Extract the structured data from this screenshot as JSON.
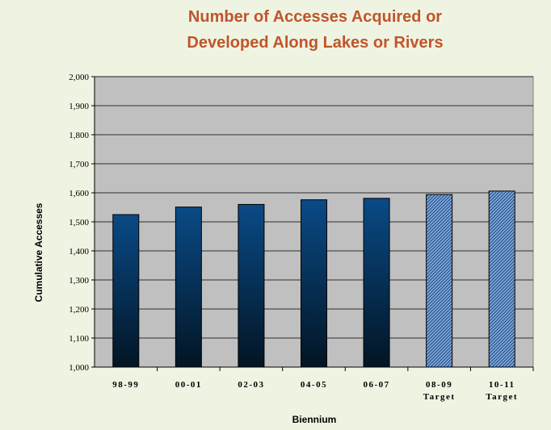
{
  "chart_data": {
    "type": "bar",
    "title_line1": "Number of Accesses Acquired or",
    "title_line2": "Developed Along Lakes or Rivers",
    "xlabel": "Biennium",
    "ylabel": "Cumulative Accesses",
    "ylim": [
      1000,
      2000
    ],
    "yticks": [
      "1,000",
      "1,100",
      "1,200",
      "1,300",
      "1,400",
      "1,500",
      "1,600",
      "1,700",
      "1,800",
      "1,900",
      "2,000"
    ],
    "ytick_values": [
      1000,
      1100,
      1200,
      1300,
      1400,
      1500,
      1600,
      1700,
      1800,
      1900,
      2000
    ],
    "grid": true,
    "legend": "none",
    "categories": [
      {
        "label": "98-99",
        "sub": "",
        "value": 1525,
        "style": "actual"
      },
      {
        "label": "00-01",
        "sub": "",
        "value": 1551,
        "style": "actual"
      },
      {
        "label": "02-03",
        "sub": "",
        "value": 1560,
        "style": "actual"
      },
      {
        "label": "04-05",
        "sub": "",
        "value": 1576,
        "style": "actual"
      },
      {
        "label": "06-07",
        "sub": "",
        "value": 1581,
        "style": "actual"
      },
      {
        "label": "08-09",
        "sub": "Target",
        "value": 1594,
        "style": "target"
      },
      {
        "label": "10-11",
        "sub": "Target",
        "value": 1606,
        "style": "target"
      }
    ],
    "colors": {
      "plot_bg": "#c0c0c0",
      "bar_top": "#0a4a86",
      "bar_bottom": "#021524",
      "target_fill": "#7aa8e0",
      "title": "#c0552a"
    }
  }
}
